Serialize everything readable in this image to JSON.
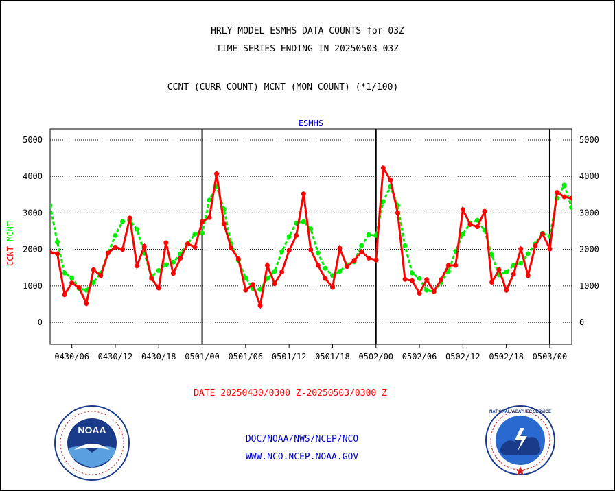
{
  "header": {
    "title_line1": "HRLY MODEL ESMHS DATA COUNTS for 03Z",
    "title_line2": "TIME SERIES ENDING IN 20250503 03Z",
    "subtitle": "CCNT (CURR COUNT) MCNT (MON COUNT) (*1/100)"
  },
  "footer": {
    "date_range": "DATE 20250430/0300 Z-20250503/0300 Z",
    "link1": "DOC/NOAA/NWS/NCEP/NCO",
    "link2": "WWW.NCO.NCEP.NOAA.GOV",
    "noaa_logo_text": "NOAA",
    "nws_logo_text": "NATIONAL WEATHER SERVICE"
  },
  "colors": {
    "ccnt": "#ff0000",
    "mcnt": "#00ee00",
    "axis_title": "#0000cc",
    "link": "#0000cc"
  },
  "chart_data": {
    "type": "line",
    "title": "ESMHS",
    "ylabel_parts": [
      "CCNT",
      "MCNT"
    ],
    "ylim": [
      -600,
      5300
    ],
    "yticks": [
      0,
      1000,
      2000,
      3000,
      4000,
      5000
    ],
    "grid": true,
    "day_boundaries": [
      "0501/00",
      "0502/00",
      "0503/00"
    ],
    "x_tick_labels": [
      "0430/06",
      "0430/12",
      "0430/18",
      "0501/00",
      "0501/06",
      "0501/12",
      "0501/18",
      "0502/00",
      "0502/06",
      "0502/12",
      "0502/18",
      "0503/00"
    ],
    "x_start": "0430/03",
    "x_end": "0503/03",
    "series": [
      {
        "name": "CCNT",
        "values": [
          1920,
          1880,
          760,
          1080,
          950,
          520,
          1440,
          1280,
          1900,
          2060,
          2000,
          2860,
          1550,
          2080,
          1200,
          940,
          2180,
          1340,
          1760,
          2150,
          2060,
          2760,
          2870,
          4070,
          2700,
          2040,
          1740,
          880,
          1040,
          460,
          1560,
          1060,
          1380,
          1970,
          2380,
          3520,
          1990,
          1560,
          1200,
          960,
          2030,
          1530,
          1700,
          1940,
          1760,
          1710,
          4230,
          3900,
          3000,
          1180,
          1140,
          800,
          1170,
          850,
          1170,
          1560,
          1560,
          3090,
          2680,
          2620,
          3040,
          1100,
          1440,
          880,
          1320,
          2010,
          1280,
          2100,
          2430,
          2010,
          3560,
          3440,
          3400
        ]
      },
      {
        "name": "MCNT",
        "values": [
          3200,
          2200,
          1350,
          1220,
          930,
          880,
          1100,
          1350,
          1900,
          2380,
          2760,
          2800,
          2550,
          1900,
          1250,
          1420,
          1580,
          1650,
          1880,
          2150,
          2420,
          2450,
          3350,
          3730,
          3100,
          2150,
          1700,
          1220,
          930,
          900,
          1200,
          1400,
          1940,
          2350,
          2720,
          2760,
          2560,
          1900,
          1480,
          1280,
          1400,
          1580,
          1660,
          2100,
          2400,
          2380,
          3310,
          3720,
          3200,
          2100,
          1350,
          1200,
          880,
          840,
          1100,
          1400,
          1950,
          2420,
          2720,
          2800,
          2520,
          1850,
          1300,
          1380,
          1560,
          1620,
          1880,
          2150,
          2440,
          2360,
          3400,
          3760,
          3150
        ]
      }
    ]
  }
}
